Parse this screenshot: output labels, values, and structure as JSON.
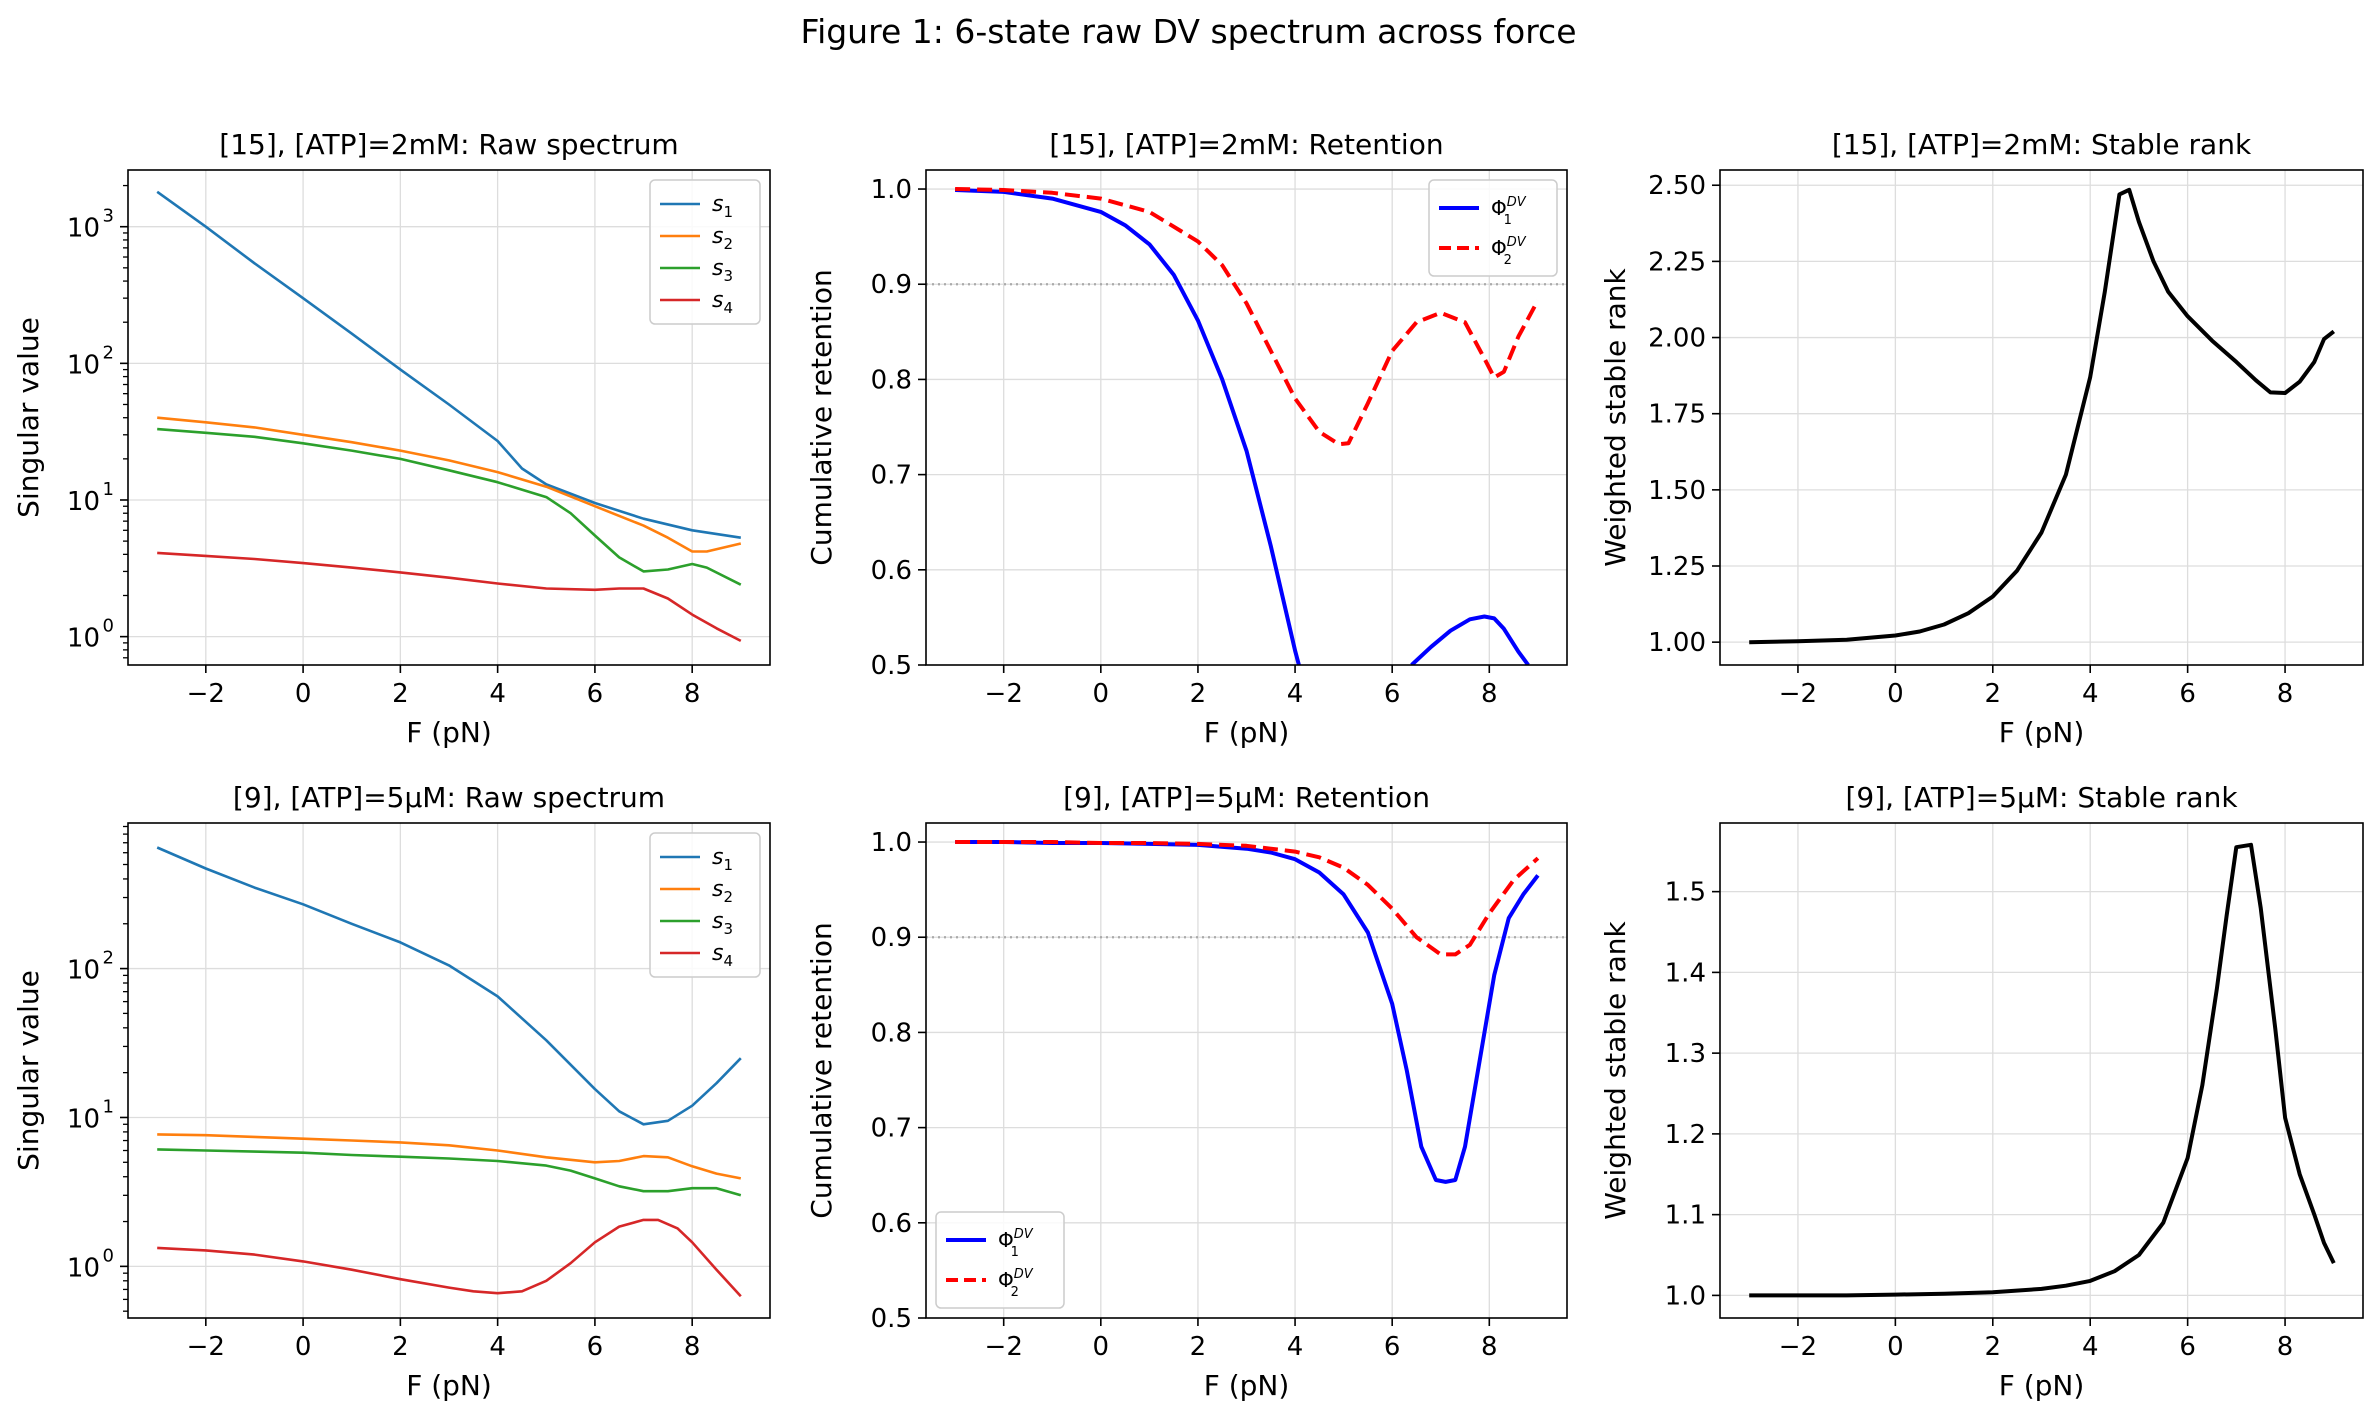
{
  "figure_title": "Figure 1: 6-state raw DV spectrum across force",
  "colors": {
    "s1": "#1f77b4",
    "s2": "#ff7f0e",
    "s3": "#2ca02c",
    "s4": "#d62728",
    "phi1": "#0000ff",
    "phi2": "#ff0000",
    "rank": "#000000",
    "grid": "#dddddd",
    "ref": "#aaaaaa"
  },
  "chart_data": [
    {
      "id": "p00",
      "type": "line",
      "yscale": "log",
      "title": "[15], [ATP]=2mM: Raw spectrum",
      "xlabel": "F (pN)",
      "ylabel": "Singular value",
      "xlim": [
        -3.6,
        9.6
      ],
      "ylim": [
        0.62,
        2600
      ],
      "xticks": [
        -2,
        0,
        2,
        4,
        6,
        8
      ],
      "xtick_labels": [
        "−2",
        "0",
        "2",
        "4",
        "6",
        "8"
      ],
      "yticks": [
        1,
        10,
        100,
        1000
      ],
      "ytick_labels": [
        "10",
        "10",
        "10",
        "10"
      ],
      "ytick_exps": [
        "0",
        "1",
        "2",
        "3"
      ],
      "legend_loc": "upper right",
      "series": [
        {
          "name": "s",
          "sub": "1",
          "color_key": "s1",
          "style": "solid",
          "x": [
            -3,
            -2,
            -1,
            0,
            1,
            2,
            3,
            4,
            4.5,
            5,
            6,
            7,
            8,
            9
          ],
          "values": [
            1800,
            1000,
            540,
            300,
            165,
            90,
            50,
            27,
            17,
            13,
            9.5,
            7.3,
            6,
            5.3
          ]
        },
        {
          "name": "s",
          "sub": "2",
          "color_key": "s2",
          "style": "solid",
          "x": [
            -3,
            -2,
            -1,
            0,
            1,
            2,
            3,
            4,
            5,
            6,
            7,
            7.5,
            8,
            8.3,
            9
          ],
          "values": [
            40,
            37,
            34,
            30,
            26.5,
            23,
            19.5,
            16,
            12.5,
            9,
            6.5,
            5.3,
            4.2,
            4.2,
            4.8
          ]
        },
        {
          "name": "s",
          "sub": "3",
          "color_key": "s3",
          "style": "solid",
          "x": [
            -3,
            -2,
            -1,
            0,
            1,
            2,
            3,
            4,
            5,
            5.5,
            6,
            6.5,
            7,
            7.5,
            8,
            8.3,
            9
          ],
          "values": [
            33,
            31,
            29,
            26,
            23,
            20,
            16.5,
            13.5,
            10.5,
            8,
            5.5,
            3.8,
            3,
            3.1,
            3.4,
            3.2,
            2.4
          ]
        },
        {
          "name": "s",
          "sub": "4",
          "color_key": "s4",
          "style": "solid",
          "x": [
            -3,
            -2,
            -1,
            0,
            1,
            2,
            3,
            4,
            5,
            6,
            6.5,
            7,
            7.5,
            8,
            8.5,
            9
          ],
          "values": [
            4.1,
            3.9,
            3.7,
            3.45,
            3.2,
            2.95,
            2.7,
            2.45,
            2.25,
            2.2,
            2.25,
            2.25,
            1.9,
            1.45,
            1.15,
            0.93
          ]
        }
      ]
    },
    {
      "id": "p01",
      "type": "line",
      "yscale": "linear",
      "title": "[15], [ATP]=2mM: Retention",
      "xlabel": "F (pN)",
      "ylabel": "Cumulative retention",
      "xlim": [
        -3.6,
        9.6
      ],
      "ylim": [
        0.5,
        1.02
      ],
      "xticks": [
        -2,
        0,
        2,
        4,
        6,
        8
      ],
      "xtick_labels": [
        "−2",
        "0",
        "2",
        "4",
        "6",
        "8"
      ],
      "yticks": [
        0.5,
        0.6,
        0.7,
        0.8,
        0.9,
        1.0
      ],
      "ytick_labels": [
        "0.5",
        "0.6",
        "0.7",
        "0.8",
        "0.9",
        "1.0"
      ],
      "hline": 0.9,
      "legend_loc": "upper right",
      "series": [
        {
          "name": "Φ",
          "sub": "1",
          "sup": "DV",
          "color_key": "phi1",
          "style": "solid",
          "x": [
            -3,
            -2,
            -1,
            0,
            0.5,
            1,
            1.5,
            2,
            2.5,
            3,
            3.5,
            4,
            4.08
          ],
          "values": [
            0.999,
            0.997,
            0.99,
            0.976,
            0.962,
            0.942,
            0.91,
            0.862,
            0.8,
            0.725,
            0.625,
            0.515,
            0.5
          ]
        },
        {
          "name": "Φ",
          "sub": "1",
          "sup": "DV",
          "color_key": "phi1",
          "style": "solid",
          "legend_hidden": true,
          "x": [
            6.4,
            6.8,
            7.2,
            7.6,
            7.9,
            8.1,
            8.3,
            8.6,
            8.8
          ],
          "values": [
            0.5,
            0.519,
            0.536,
            0.548,
            0.551,
            0.549,
            0.538,
            0.514,
            0.5
          ]
        },
        {
          "name": "Φ",
          "sub": "2",
          "sup": "DV",
          "color_key": "phi2",
          "style": "dashed",
          "x": [
            -3,
            -2,
            -1,
            0,
            1,
            2,
            2.5,
            3,
            3.5,
            4,
            4.5,
            4.9,
            5.1,
            5.5,
            6,
            6.5,
            7,
            7.5,
            7.9,
            8.1,
            8.3,
            8.6,
            9
          ],
          "values": [
            1.0,
            0.999,
            0.996,
            0.99,
            0.976,
            0.945,
            0.92,
            0.88,
            0.83,
            0.78,
            0.745,
            0.732,
            0.733,
            0.775,
            0.83,
            0.86,
            0.87,
            0.86,
            0.822,
            0.802,
            0.808,
            0.845,
            0.883
          ]
        }
      ]
    },
    {
      "id": "p02",
      "type": "line",
      "yscale": "linear",
      "title": "[15], [ATP]=2mM: Stable rank",
      "xlabel": "F (pN)",
      "ylabel": "Weighted stable rank",
      "xlim": [
        -3.6,
        9.6
      ],
      "ylim": [
        0.925,
        2.55
      ],
      "xticks": [
        -2,
        0,
        2,
        4,
        6,
        8
      ],
      "xtick_labels": [
        "−2",
        "0",
        "2",
        "4",
        "6",
        "8"
      ],
      "yticks": [
        1.0,
        1.25,
        1.5,
        1.75,
        2.0,
        2.25,
        2.5
      ],
      "ytick_labels": [
        "1.00",
        "1.25",
        "1.50",
        "1.75",
        "2.00",
        "2.25",
        "2.50"
      ],
      "series": [
        {
          "name": "rank",
          "color_key": "rank",
          "style": "solid",
          "x": [
            -3,
            -2,
            -1,
            0,
            0.5,
            1,
            1.5,
            2,
            2.5,
            3,
            3.5,
            4,
            4.3,
            4.6,
            4.8,
            5,
            5.3,
            5.6,
            6,
            6.5,
            7,
            7.4,
            7.7,
            8,
            8.3,
            8.6,
            8.8,
            9
          ],
          "values": [
            1.0,
            1.003,
            1.008,
            1.022,
            1.035,
            1.058,
            1.095,
            1.15,
            1.235,
            1.36,
            1.55,
            1.87,
            2.15,
            2.47,
            2.485,
            2.38,
            2.25,
            2.15,
            2.07,
            1.99,
            1.92,
            1.86,
            1.82,
            1.818,
            1.855,
            1.92,
            1.995,
            2.02
          ]
        }
      ]
    },
    {
      "id": "p10",
      "type": "line",
      "yscale": "log",
      "title": "[9], [ATP]=5μM: Raw spectrum",
      "xlabel": "F (pN)",
      "ylabel": "Singular value",
      "xlim": [
        -3.6,
        9.6
      ],
      "ylim": [
        0.45,
        950
      ],
      "xticks": [
        -2,
        0,
        2,
        4,
        6,
        8
      ],
      "xtick_labels": [
        "−2",
        "0",
        "2",
        "4",
        "6",
        "8"
      ],
      "yticks": [
        1,
        10,
        100
      ],
      "ytick_labels": [
        "10",
        "10",
        "10"
      ],
      "ytick_exps": [
        "0",
        "1",
        "2"
      ],
      "legend_loc": "upper right",
      "series": [
        {
          "name": "s",
          "sub": "1",
          "color_key": "s1",
          "style": "solid",
          "x": [
            -3,
            -2,
            -1,
            0,
            1,
            2,
            3,
            4,
            5,
            6,
            6.5,
            7,
            7.5,
            8,
            8.5,
            9
          ],
          "values": [
            650,
            470,
            350,
            270,
            200,
            150,
            105,
            65,
            33,
            15.5,
            11,
            9,
            9.5,
            12,
            17,
            25
          ]
        },
        {
          "name": "s",
          "sub": "2",
          "color_key": "s2",
          "style": "solid",
          "x": [
            -3,
            -2,
            -1,
            0,
            1,
            2,
            3,
            4,
            5,
            6,
            6.5,
            7,
            7.5,
            8,
            8.5,
            9
          ],
          "values": [
            7.7,
            7.6,
            7.4,
            7.2,
            7.0,
            6.8,
            6.5,
            6.0,
            5.4,
            5.0,
            5.1,
            5.5,
            5.4,
            4.7,
            4.2,
            3.9
          ]
        },
        {
          "name": "s",
          "sub": "3",
          "color_key": "s3",
          "style": "solid",
          "x": [
            -3,
            -2,
            -1,
            0,
            1,
            2,
            3,
            4,
            5,
            5.5,
            6,
            6.5,
            7,
            7.5,
            8,
            8.5,
            9
          ],
          "values": [
            6.1,
            6.0,
            5.9,
            5.8,
            5.6,
            5.45,
            5.3,
            5.1,
            4.75,
            4.4,
            3.9,
            3.45,
            3.2,
            3.2,
            3.35,
            3.35,
            3.0
          ]
        },
        {
          "name": "s",
          "sub": "4",
          "color_key": "s4",
          "style": "solid",
          "x": [
            -3,
            -2,
            -1,
            0,
            1,
            2,
            3,
            3.5,
            4,
            4.5,
            5,
            5.5,
            6,
            6.5,
            7,
            7.3,
            7.7,
            8,
            8.5,
            9
          ],
          "values": [
            1.33,
            1.28,
            1.2,
            1.08,
            0.95,
            0.82,
            0.72,
            0.68,
            0.66,
            0.68,
            0.8,
            1.05,
            1.45,
            1.85,
            2.05,
            2.05,
            1.8,
            1.45,
            0.95,
            0.63
          ]
        }
      ]
    },
    {
      "id": "p11",
      "type": "line",
      "yscale": "linear",
      "title": "[9], [ATP]=5μM: Retention",
      "xlabel": "F (pN)",
      "ylabel": "Cumulative retention",
      "xlim": [
        -3.6,
        9.6
      ],
      "ylim": [
        0.5,
        1.02
      ],
      "xticks": [
        -2,
        0,
        2,
        4,
        6,
        8
      ],
      "xtick_labels": [
        "−2",
        "0",
        "2",
        "4",
        "6",
        "8"
      ],
      "yticks": [
        0.5,
        0.6,
        0.7,
        0.8,
        0.9,
        1.0
      ],
      "ytick_labels": [
        "0.5",
        "0.6",
        "0.7",
        "0.8",
        "0.9",
        "1.0"
      ],
      "hline": 0.9,
      "legend_loc": "lower left",
      "series": [
        {
          "name": "Φ",
          "sub": "1",
          "sup": "DV",
          "color_key": "phi1",
          "style": "solid",
          "x": [
            -3,
            -2,
            -1,
            0,
            1,
            2,
            3,
            3.5,
            4,
            4.5,
            5,
            5.5,
            6,
            6.3,
            6.6,
            6.9,
            7.1,
            7.3,
            7.5,
            7.8,
            8.1,
            8.4,
            8.7,
            9
          ],
          "values": [
            1.0,
            1.0,
            0.999,
            0.999,
            0.998,
            0.997,
            0.993,
            0.989,
            0.982,
            0.968,
            0.945,
            0.905,
            0.83,
            0.76,
            0.68,
            0.645,
            0.643,
            0.645,
            0.68,
            0.77,
            0.86,
            0.92,
            0.945,
            0.965
          ]
        },
        {
          "name": "Φ",
          "sub": "2",
          "sup": "DV",
          "color_key": "phi2",
          "style": "dashed",
          "x": [
            -3,
            -2,
            -1,
            0,
            1,
            2,
            3,
            4,
            4.5,
            5,
            5.5,
            6,
            6.5,
            7,
            7.3,
            7.6,
            8,
            8.5,
            9
          ],
          "values": [
            1.0,
            1.0,
            1.0,
            0.999,
            0.999,
            0.998,
            0.996,
            0.99,
            0.984,
            0.973,
            0.955,
            0.93,
            0.9,
            0.882,
            0.882,
            0.892,
            0.925,
            0.96,
            0.983
          ]
        }
      ]
    },
    {
      "id": "p12",
      "type": "line",
      "yscale": "linear",
      "title": "[9], [ATP]=5μM: Stable rank",
      "xlabel": "F (pN)",
      "ylabel": "Weighted stable rank",
      "xlim": [
        -3.6,
        9.6
      ],
      "ylim": [
        0.972,
        1.585
      ],
      "xticks": [
        -2,
        0,
        2,
        4,
        6,
        8
      ],
      "xtick_labels": [
        "−2",
        "0",
        "2",
        "4",
        "6",
        "8"
      ],
      "yticks": [
        1.0,
        1.1,
        1.2,
        1.3,
        1.4,
        1.5
      ],
      "ytick_labels": [
        "1.0",
        "1.1",
        "1.2",
        "1.3",
        "1.4",
        "1.5"
      ],
      "series": [
        {
          "name": "rank",
          "color_key": "rank",
          "style": "solid",
          "x": [
            -3,
            -2,
            -1,
            0,
            1,
            2,
            3,
            3.5,
            4,
            4.5,
            5,
            5.5,
            6,
            6.3,
            6.6,
            6.8,
            7.0,
            7.3,
            7.5,
            7.8,
            8,
            8.3,
            8.6,
            8.8,
            9
          ],
          "values": [
            1.0,
            1.0,
            1.0,
            1.001,
            1.002,
            1.004,
            1.008,
            1.012,
            1.018,
            1.03,
            1.05,
            1.09,
            1.17,
            1.26,
            1.38,
            1.47,
            1.555,
            1.558,
            1.48,
            1.33,
            1.22,
            1.15,
            1.1,
            1.065,
            1.04
          ]
        }
      ]
    }
  ]
}
